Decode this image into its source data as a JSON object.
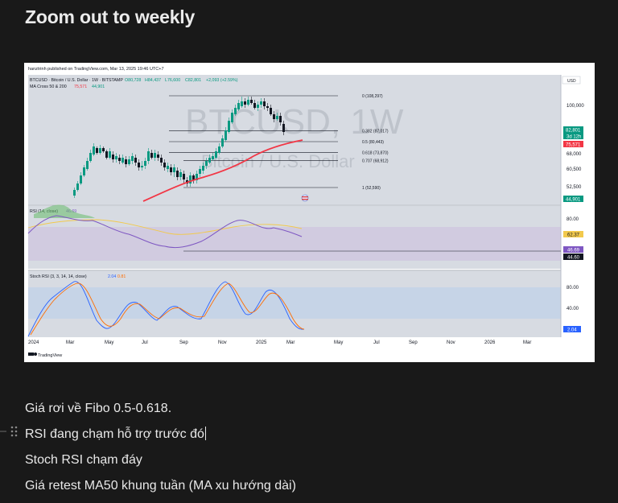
{
  "page": {
    "heading": "Zoom out to weekly"
  },
  "chart": {
    "publisher": "hanztrinh published on TradingView.com, Mar 13, 2025 19:46 UTC+7",
    "symbol_line": "BTCUSD · Bitcoin / U.S. Dollar · 1W · BITSTAMP",
    "ohlc": {
      "o": "O80,728",
      "h": "H84,437",
      "l": "L76,600",
      "c": "C82,801",
      "chg": "+2,093 (+2.59%)"
    },
    "ma_line": {
      "label": "MA Cross 50 & 200",
      "ma50": "75,571",
      "ma200": "44,901"
    },
    "currency": "USD",
    "watermark_symbol": "BTCUSD, 1W",
    "watermark_desc": "Bitcoin / U.S. Dollar",
    "fibo_levels": [
      {
        "label": "0 (108,297)",
        "price": 108297
      },
      {
        "label": "0.382 (87,017)",
        "price": 87017
      },
      {
        "label": "0.5 (80,443)",
        "price": 80443
      },
      {
        "label": "0.618 (73,870)",
        "price": 73870
      },
      {
        "label": "0.707 (68,912)",
        "price": 68912
      },
      {
        "label": "1 (52,590)",
        "price": 52590
      }
    ],
    "price_ticks": [
      "100,000",
      "68,000",
      "60,500",
      "52,500"
    ],
    "price_badges": {
      "last": "82,801",
      "countdown": "3d 12h",
      "ma50": "75,571",
      "ma200": "44,901"
    },
    "rsi": {
      "label": "RSI (14, close)",
      "value": "46.69",
      "ma_value": "62.37",
      "ticks": [
        "80.00"
      ],
      "badges": [
        "62.37",
        "46.69",
        "44.60"
      ]
    },
    "stoch": {
      "label": "Stoch RSI (3, 3, 14, 14, close)",
      "k": "2.04",
      "d": "0.81",
      "ticks": [
        "80.00",
        "40.00"
      ],
      "badge": "2.04"
    },
    "time_axis": [
      "2024",
      "Mar",
      "May",
      "Jul",
      "Sep",
      "Nov",
      "2025",
      "Mar",
      "May",
      "Jul",
      "Sep",
      "Nov",
      "2026",
      "Mar"
    ],
    "brand": "TradingView",
    "colors": {
      "up": "#089981",
      "down": "#131722",
      "ma50": "#f23645",
      "rsi_line": "#7e57c2",
      "stoch_k": "#2962ff",
      "stoch_d": "#ff6d00"
    }
  },
  "notes": [
    {
      "text": "Giá rơi về Fibo 0.5-0.618."
    },
    {
      "text": "RSI đang chạm hỗ trợ trước đó"
    },
    {
      "text": "Stoch RSI chạm đáy"
    },
    {
      "text": "Giá retest MA50 khung tuần (MA xu hướng dài)"
    }
  ]
}
